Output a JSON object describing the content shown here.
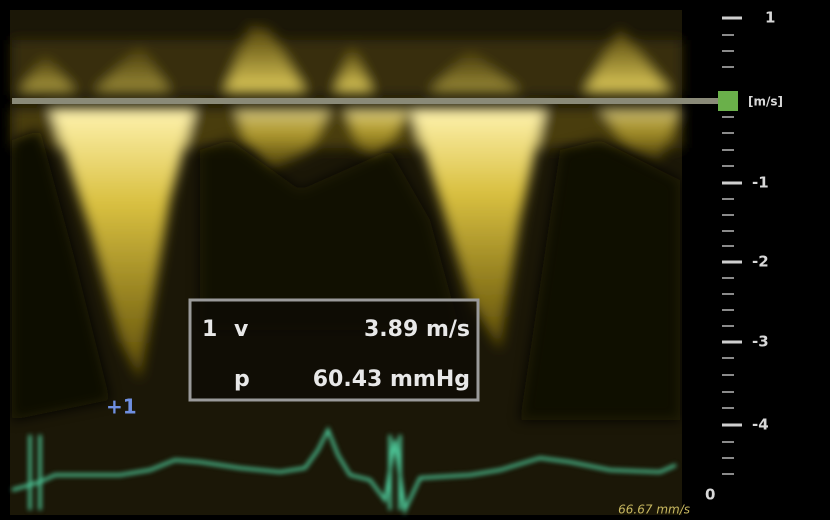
{
  "scale": {
    "top": "1",
    "unit": "[m/s]",
    "labels": [
      "-1",
      "-2",
      "-3",
      "-4"
    ],
    "zero": "0"
  },
  "measurement": {
    "index": "1",
    "rows": [
      {
        "label": "v",
        "value": "3.89 m/s"
      },
      {
        "label": "p",
        "value": "60.43 mmHg"
      }
    ]
  },
  "cursor": "+1",
  "sweep_speed": "66.67 mm/s"
}
